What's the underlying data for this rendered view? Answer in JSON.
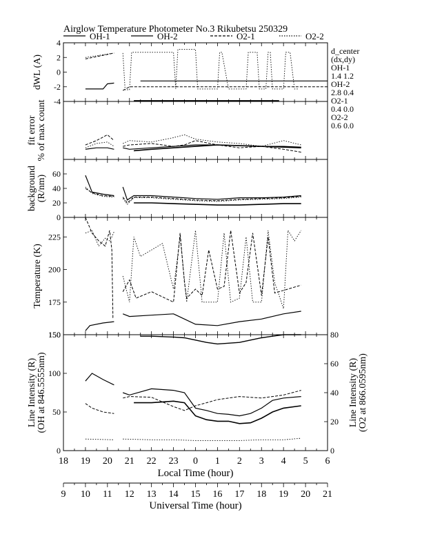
{
  "header": {
    "title": "Airglow Temperature Photometer No.3",
    "site": "Rikubetsu",
    "date": "250329"
  },
  "legend": [
    {
      "name": "OH-1",
      "style": "solid"
    },
    {
      "name": "OH-2",
      "style": "solid"
    },
    {
      "name": "O2-1",
      "style": "dashed"
    },
    {
      "name": "O2-2",
      "style": "dotted"
    }
  ],
  "dcenter": {
    "heading": "d_center",
    "sub": "(dx,dy)",
    "rows": [
      {
        "name": "OH-1",
        "value": "1.4   1.2"
      },
      {
        "name": "OH-2",
        "value": "2.8   0.4"
      },
      {
        "name": "O2-1",
        "value": "0.4   0.0"
      },
      {
        "name": "O2-2",
        "value": "0.6   0.0"
      }
    ]
  },
  "axes": {
    "local_time_label": "Local Time (hour)",
    "universal_time_label": "Universal Time (hour)",
    "local_ticks": [
      "18",
      "19",
      "20",
      "21",
      "22",
      "23",
      "0",
      "1",
      "2",
      "3",
      "4",
      "5",
      "6"
    ],
    "universal_ticks": [
      "9",
      "10",
      "11",
      "12",
      "13",
      "14",
      "15",
      "16",
      "17",
      "18",
      "19",
      "20",
      "21"
    ]
  },
  "chart_data": [
    {
      "type": "line",
      "ylabel": "dWL (A)",
      "ylim": [
        -4,
        4
      ],
      "yticks": [
        "4",
        "2",
        "0",
        "-2",
        "-4"
      ],
      "xlim": [
        18,
        30
      ],
      "series": [
        {
          "name": "OH-1",
          "x": [
            19.0,
            19.8,
            20.0,
            20.3,
            null,
            21.5,
            30.0
          ],
          "y": [
            -2.3,
            -2.3,
            -1.6,
            -1.5,
            null,
            -1.2,
            -1.2
          ]
        },
        {
          "name": "OH-2",
          "x": [
            21.2,
            27.8
          ],
          "y": [
            -3.9,
            -3.9
          ]
        },
        {
          "name": "O2-1",
          "x": [
            19.0,
            20.3,
            null,
            20.7,
            21.0,
            23.5,
            30.0
          ],
          "y": [
            1.8,
            2.6,
            null,
            -2.5,
            -2.0,
            -2.0,
            -2.0
          ]
        },
        {
          "name": "O2-2",
          "x": [
            19.0,
            20.3,
            null,
            20.7,
            20.8,
            21.0,
            21.1,
            21.2,
            23.0,
            23.1,
            23.2,
            23.3,
            24.0,
            24.1,
            24.2,
            24.5,
            25.0,
            25.1,
            25.2,
            25.5,
            25.6,
            26.0,
            26.3,
            26.4,
            26.8,
            26.9,
            27.2,
            27.3,
            27.4,
            27.5,
            28.0,
            28.1,
            28.2,
            28.3,
            28.5,
            28.7
          ],
          "y": [
            2.0,
            2.6,
            null,
            2.6,
            -2.4,
            -2.4,
            2.7,
            2.7,
            2.7,
            -2.3,
            3.1,
            3.1,
            3.1,
            -2.3,
            -2.3,
            -2.3,
            -2.3,
            2.7,
            2.7,
            -2.3,
            -2.3,
            -2.3,
            -2.3,
            2.7,
            2.7,
            -2.3,
            -2.3,
            2.7,
            2.7,
            -2.3,
            -2.3,
            2.7,
            2.7,
            2.7,
            -2.3,
            -2.3
          ]
        }
      ]
    },
    {
      "type": "line",
      "ylabel": "fit error",
      "ylabel2": "% of max count",
      "ylim": [
        0,
        4
      ],
      "yticks": [],
      "xlim": [
        18,
        30
      ],
      "series": [
        {
          "name": "OH-1",
          "x": [
            19.0,
            19.5,
            20.0,
            20.3,
            null,
            20.7,
            21.0,
            22.0,
            23.0,
            24.0,
            25.0,
            26.0,
            27.0,
            28.0,
            28.8
          ],
          "y": [
            0.7,
            0.8,
            0.8,
            0.7,
            null,
            0.8,
            0.7,
            0.8,
            0.9,
            1.0,
            1.0,
            0.95,
            0.9,
            0.9,
            0.85
          ]
        },
        {
          "name": "OH-2",
          "x": [
            21.2,
            22.0,
            23.0,
            24.0,
            25.0,
            26.0,
            27.0,
            28.0,
            28.8
          ],
          "y": [
            0.6,
            0.7,
            0.8,
            0.9,
            1.0,
            0.95,
            0.9,
            0.85,
            0.8
          ]
        },
        {
          "name": "O2-1",
          "x": [
            19.0,
            19.5,
            20.0,
            20.3,
            null,
            20.7,
            21.0,
            22.0,
            23.0,
            23.5,
            24.0,
            25.0,
            26.0,
            27.0,
            28.0,
            28.8
          ],
          "y": [
            1.0,
            1.3,
            1.7,
            1.3,
            null,
            0.9,
            1.0,
            1.1,
            0.9,
            1.0,
            1.3,
            1.0,
            0.8,
            0.9,
            0.7,
            0.5
          ]
        },
        {
          "name": "O2-2",
          "x": [
            19.0,
            19.5,
            20.0,
            20.3,
            null,
            20.7,
            21.0,
            22.0,
            23.0,
            23.5,
            24.0,
            25.0,
            26.0,
            27.0,
            28.0,
            28.8
          ],
          "y": [
            0.8,
            1.1,
            1.2,
            0.9,
            null,
            1.1,
            1.3,
            1.2,
            1.5,
            1.7,
            1.4,
            1.2,
            1.1,
            0.9,
            1.3,
            1.0
          ]
        }
      ]
    },
    {
      "type": "line",
      "ylabel": "background",
      "ylabel2": "(R/nm)",
      "ylim": [
        0,
        80
      ],
      "yticks": [
        "60",
        "40",
        "20",
        "0"
      ],
      "xlim": [
        18,
        30
      ],
      "series": [
        {
          "name": "OH-1",
          "x": [
            19.0,
            19.3,
            19.8,
            20.3,
            null,
            20.7,
            20.9,
            21.2,
            22.0,
            23.0,
            24.0,
            25.0,
            26.0,
            27.0,
            28.0,
            28.8
          ],
          "y": [
            58,
            35,
            32,
            30,
            null,
            42,
            24,
            30,
            30,
            28,
            26,
            25,
            27,
            27,
            28,
            30
          ]
        },
        {
          "name": "OH-2",
          "x": [
            21.2,
            22.0,
            23.0,
            24.0,
            25.0,
            26.0,
            27.0,
            28.0,
            28.8
          ],
          "y": [
            20,
            20,
            19,
            18,
            17,
            17,
            18,
            19,
            19
          ]
        },
        {
          "name": "O2-1",
          "x": [
            19.0,
            19.3,
            19.8,
            20.3,
            null,
            20.7,
            20.9,
            21.2,
            22.0,
            23.0,
            24.0,
            25.0,
            26.0,
            27.0,
            28.0,
            28.8
          ],
          "y": [
            40,
            34,
            30,
            29,
            null,
            28,
            20,
            28,
            28,
            26,
            24,
            23,
            25,
            26,
            27,
            29
          ]
        },
        {
          "name": "O2-2",
          "x": [
            19.0,
            19.3,
            19.8,
            20.3,
            null,
            20.7,
            20.9,
            21.2,
            22.0,
            23.0,
            24.0,
            25.0,
            26.0,
            27.0,
            28.0,
            28.8
          ],
          "y": [
            42,
            33,
            29,
            28,
            null,
            26,
            18,
            27,
            27,
            25,
            23,
            22,
            24,
            25,
            26,
            28
          ]
        }
      ]
    },
    {
      "type": "line",
      "ylabel": "Temperature (K)",
      "ylim": [
        150,
        240
      ],
      "yticks": [
        "225",
        "200",
        "175",
        "150"
      ],
      "xlim": [
        18,
        30
      ],
      "series": [
        {
          "name": "OH-1",
          "x": [
            19.0,
            19.2,
            19.8,
            20.3,
            null,
            20.7,
            21.0,
            22.0,
            23.0,
            24.0,
            25.0,
            26.0,
            27.0,
            28.0,
            28.8
          ],
          "y": [
            153,
            157,
            159,
            160,
            null,
            166,
            164,
            165,
            166,
            158,
            157,
            160,
            162,
            166,
            168
          ]
        },
        {
          "name": "O2-1",
          "x": [
            19.0,
            19.3,
            19.6,
            19.9,
            20.1,
            20.2,
            20.25,
            20.3,
            null,
            20.7,
            21.0,
            21.3,
            22.0,
            23.0,
            23.3,
            23.5,
            23.6,
            24.0,
            24.3,
            24.6,
            25.0,
            25.3,
            25.6,
            26.0,
            26.3,
            26.6,
            27.0,
            27.3,
            27.6,
            28.0,
            28.8
          ],
          "y": [
            240,
            228,
            222,
            218,
            230,
            215,
            163,
            163,
            null,
            183,
            192,
            178,
            183,
            175,
            228,
            190,
            178,
            185,
            180,
            215,
            185,
            187,
            230,
            182,
            190,
            228,
            180,
            225,
            182,
            184,
            188
          ]
        },
        {
          "name": "O2-2",
          "x": [
            19.0,
            19.3,
            19.6,
            19.9,
            20.1,
            20.2,
            20.3,
            null,
            20.7,
            21.0,
            21.2,
            21.5,
            22.0,
            22.5,
            23.0,
            23.3,
            23.6,
            24.0,
            24.3,
            24.6,
            25.0,
            25.3,
            25.6,
            26.0,
            26.3,
            26.6,
            27.0,
            27.3,
            27.6,
            28.0,
            28.2,
            28.5,
            28.8
          ],
          "y": [
            228,
            230,
            218,
            224,
            222,
            225,
            229,
            null,
            195,
            175,
            225,
            210,
            215,
            220,
            185,
            225,
            175,
            230,
            175,
            175,
            175,
            228,
            175,
            178,
            225,
            175,
            175,
            230,
            190,
            170,
            230,
            222,
            230
          ]
        }
      ]
    },
    {
      "type": "line",
      "ylabel": "Line Intensity (R)",
      "ylabel2": "(OH at 846.5555nm)",
      "ylabel_right": "Line Intensity (R)",
      "ylabel_right2": "(O2 at 866.0595nm)",
      "ylim": [
        0,
        150
      ],
      "yticks": [
        "150",
        "100",
        "50",
        "0"
      ],
      "ylim_right": [
        0,
        80
      ],
      "yticks_right": [
        "80",
        "60",
        "40",
        "20",
        "0"
      ],
      "xlim": [
        18,
        30
      ],
      "series": [
        {
          "name": "OH-1",
          "x": [
            19.0,
            19.3,
            19.8,
            20.3,
            null,
            20.7,
            21.0,
            22.0,
            23.0,
            23.5,
            24.0,
            24.5,
            25.0,
            25.5,
            26.0,
            26.5,
            27.0,
            27.5,
            28.0,
            28.8
          ],
          "y": [
            90,
            100,
            92,
            85,
            null,
            75,
            72,
            80,
            78,
            75,
            55,
            52,
            48,
            47,
            45,
            48,
            55,
            65,
            68,
            70
          ]
        },
        {
          "name": "OH-2",
          "x": [
            21.2,
            22.0,
            23.0,
            23.5,
            24.0,
            24.5,
            25.0,
            25.5,
            26.0,
            26.5,
            27.0,
            27.5,
            28.0,
            28.8
          ],
          "y": [
            62,
            62,
            64,
            62,
            45,
            40,
            38,
            38,
            35,
            36,
            42,
            50,
            55,
            58
          ]
        },
        {
          "name": "O2-1",
          "x": [
            19.0,
            19.3,
            19.8,
            20.3,
            null,
            20.7,
            21.0,
            22.0,
            23.0,
            23.5,
            24.0,
            24.5,
            25.0,
            26.0,
            27.0,
            28.0,
            28.8
          ],
          "y": [
            61,
            55,
            50,
            48,
            null,
            68,
            70,
            69,
            57,
            52,
            58,
            62,
            66,
            70,
            68,
            72,
            78
          ]
        },
        {
          "name": "O2-2",
          "x": [
            19.0,
            20.3,
            null,
            20.7,
            22.0,
            23.0,
            24.0,
            25.0,
            26.0,
            27.0,
            28.0,
            28.8
          ],
          "y": [
            15,
            14,
            null,
            15,
            14,
            14,
            13,
            13,
            13,
            14,
            14,
            16
          ]
        },
        {
          "name": "O2-2 upper",
          "x": [
            21.5,
            22.0,
            23.0,
            23.5,
            24.0,
            24.5,
            25.0,
            25.5,
            26.0,
            26.5,
            27.0,
            27.5,
            28.0,
            28.8
          ],
          "y": [
            148,
            148,
            147,
            146,
            143,
            140,
            138,
            139,
            140,
            143,
            146,
            148,
            150,
            153
          ]
        }
      ]
    }
  ]
}
